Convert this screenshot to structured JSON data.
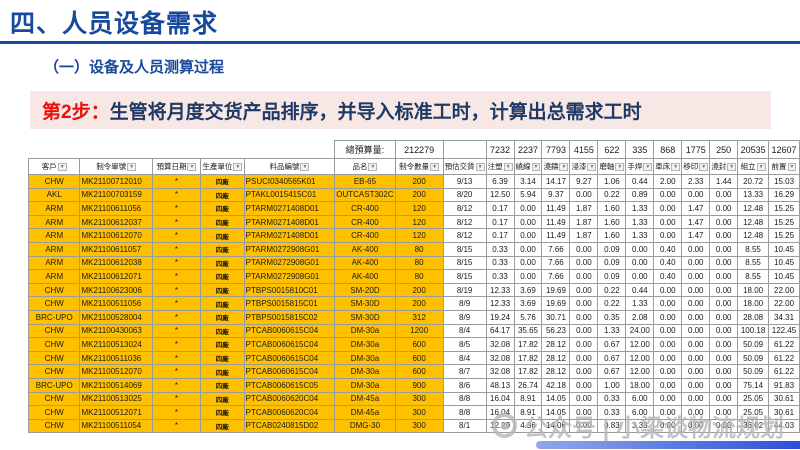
{
  "slide": {
    "title": "四、人员设备需求",
    "subtitle": "（一）设备及人员测算过程",
    "step_label": "第2步：",
    "step_text": "生管将月度交货产品排序，并导入标准工时，计算出总需求工时"
  },
  "table": {
    "summary_label": "總預算量:",
    "summary_total": "212279",
    "process_totals": [
      "7232",
      "2237",
      "7793",
      "4155",
      "622",
      "335",
      "868",
      "1775",
      "250",
      "20535",
      "12607"
    ],
    "columns": [
      "客戶",
      "制令單號",
      "預算日期",
      "生產單位",
      "料品編號",
      "品名",
      "制令數量",
      "預估交貨",
      "注塑",
      "繞線",
      "澆鑄",
      "浸漆",
      "磨軸",
      "手焊",
      "車床",
      "移印",
      "澆封",
      "組立",
      "前置"
    ],
    "rows": [
      [
        "CHW",
        "MK21100712010",
        "*",
        "四廠",
        "PSUCI0340565K01",
        "EB-65",
        "200",
        "9/13",
        "6.39",
        "3.14",
        "14.17",
        "9.27",
        "1.06",
        "0.44",
        "2.00",
        "2.33",
        "1.44",
        "20.72",
        "15.03"
      ],
      [
        "AKL",
        "MK21100703159",
        "*",
        "四廠",
        "PTAKL0015415C01",
        "OUTCAST302C",
        "200",
        "8/20",
        "12.50",
        "5.94",
        "9.37",
        "0.00",
        "0.22",
        "0.89",
        "0.00",
        "0.00",
        "0.00",
        "13.33",
        "16.29"
      ],
      [
        "ARM",
        "MK21100611056",
        "*",
        "四廠",
        "PTARM0271408D01",
        "CR-400",
        "120",
        "8/12",
        "0.17",
        "0.00",
        "11.49",
        "1.87",
        "1.60",
        "1.33",
        "0.00",
        "1.47",
        "0.00",
        "12.48",
        "15.25"
      ],
      [
        "ARM",
        "MK21100612037",
        "*",
        "四廠",
        "PTARM0271408D01",
        "CR-400",
        "120",
        "8/12",
        "0.17",
        "0.00",
        "11.49",
        "1.87",
        "1.60",
        "1.33",
        "0.00",
        "1.47",
        "0.00",
        "12.48",
        "15.25"
      ],
      [
        "ARM",
        "MK21100612070",
        "*",
        "四廠",
        "PTARM0271408D01",
        "CR-400",
        "120",
        "8/12",
        "0.17",
        "0.00",
        "11.49",
        "1.87",
        "1.60",
        "1.33",
        "0.00",
        "1.47",
        "0.00",
        "12.48",
        "15.25"
      ],
      [
        "ARM",
        "MK21100611057",
        "*",
        "四廠",
        "PTARM0272908G01",
        "AK-400",
        "80",
        "8/15",
        "0.33",
        "0.00",
        "7.66",
        "0.00",
        "0.09",
        "0.00",
        "0.40",
        "0.00",
        "0.00",
        "8.55",
        "10.45"
      ],
      [
        "ARM",
        "MK21100612038",
        "*",
        "四廠",
        "PTARM0272908G01",
        "AK-400",
        "80",
        "8/15",
        "0.33",
        "0.00",
        "7.66",
        "0.00",
        "0.09",
        "0.00",
        "0.40",
        "0.00",
        "0.00",
        "8.55",
        "10.45"
      ],
      [
        "ARM",
        "MK21100612071",
        "*",
        "四廠",
        "PTARM0272908G01",
        "AK-400",
        "80",
        "8/15",
        "0.33",
        "0.00",
        "7.66",
        "0.00",
        "0.09",
        "0.00",
        "0.40",
        "0.00",
        "0.00",
        "8.55",
        "10.45"
      ],
      [
        "CHW",
        "MK21100623006",
        "*",
        "四廠",
        "PTBPS0015810C01",
        "SM-20D",
        "200",
        "8/19",
        "12.33",
        "3.69",
        "19.69",
        "0.00",
        "0.22",
        "0.44",
        "0.00",
        "0.00",
        "0.00",
        "18.00",
        "22.00"
      ],
      [
        "CHW",
        "MK21100511056",
        "*",
        "四廠",
        "PTBPS0015815C01",
        "SM-30D",
        "200",
        "8/9",
        "12.33",
        "3.69",
        "19.69",
        "0.00",
        "0.22",
        "1.33",
        "0.00",
        "0.00",
        "0.00",
        "18.00",
        "22.00"
      ],
      [
        "BRC-UPO",
        "MK21100528004",
        "*",
        "四廠",
        "PTBPS0015815C02",
        "SM-30D",
        "312",
        "8/9",
        "19.24",
        "5.76",
        "30.71",
        "0.00",
        "0.35",
        "2.08",
        "0.00",
        "0.00",
        "0.00",
        "28.08",
        "34.31"
      ],
      [
        "CHW",
        "MK21100430063",
        "*",
        "四廠",
        "PTCAB0060615C04",
        "DM-30a",
        "1200",
        "8/4",
        "64.17",
        "35.65",
        "56.23",
        "0.00",
        "1.33",
        "24.00",
        "0.00",
        "0.00",
        "0.00",
        "100.18",
        "122.45"
      ],
      [
        "CHW",
        "MK21100513024",
        "*",
        "四廠",
        "PTCAB0060615C04",
        "DM-30a",
        "600",
        "8/5",
        "32.08",
        "17.82",
        "28.12",
        "0.00",
        "0.67",
        "12.00",
        "0.00",
        "0.00",
        "0.00",
        "50.09",
        "61.22"
      ],
      [
        "CHW",
        "MK21100511036",
        "*",
        "四廠",
        "PTCAB0060615C04",
        "DM-30a",
        "600",
        "8/4",
        "32.08",
        "17.82",
        "28.12",
        "0.00",
        "0.67",
        "12.00",
        "0.00",
        "0.00",
        "0.00",
        "50.09",
        "61.22"
      ],
      [
        "CHW",
        "MK21100512070",
        "*",
        "四廠",
        "PTCAB0060615C04",
        "DM-30a",
        "600",
        "8/7",
        "32.08",
        "17.82",
        "28.12",
        "0.00",
        "0.67",
        "12.00",
        "0.00",
        "0.00",
        "0.00",
        "50.09",
        "61.22"
      ],
      [
        "BRC-UPO",
        "MK21100514069",
        "*",
        "四廠",
        "PTCAB0060615C05",
        "DM-30a",
        "900",
        "8/6",
        "48.13",
        "26.74",
        "42.18",
        "0.00",
        "1.00",
        "18.00",
        "0.00",
        "0.00",
        "0.00",
        "75.14",
        "91.83"
      ],
      [
        "CHW",
        "MK21100513025",
        "*",
        "四廠",
        "PTCAB0060620C04",
        "DM-45a",
        "300",
        "8/8",
        "16.04",
        "8.91",
        "14.05",
        "0.00",
        "0.33",
        "6.00",
        "0.00",
        "0.00",
        "0.00",
        "25.05",
        "30.61"
      ],
      [
        "CHW",
        "MK21100512071",
        "*",
        "四廠",
        "PTCAB0060620C04",
        "DM-45a",
        "300",
        "8/8",
        "16.04",
        "8.91",
        "14.05",
        "0.00",
        "0.33",
        "6.00",
        "0.00",
        "0.00",
        "0.00",
        "25.05",
        "30.61"
      ],
      [
        "CHW",
        "MK21100511054",
        "*",
        "四廠",
        "PTCAB0240815D02",
        "DMG-30",
        "300",
        "8/1",
        "12.29",
        "4.36",
        "14.06",
        "0.00",
        "0.83",
        "3.33",
        "0.00",
        "0.00",
        "0.00",
        "36.02",
        "44.03"
      ]
    ]
  },
  "watermark": {
    "icon": "aperture-icon",
    "text": "公众号 | 小梁谈物流规划"
  },
  "colors": {
    "accent_blue": "#17499c",
    "banner_bg": "#f7e8e6",
    "step_red": "#e8110d",
    "banner_navy": "#1f3864",
    "cell_yellow": "#ffc000",
    "bottom_bar_start": "#8fa9ee",
    "bottom_bar_end": "#2c50d8",
    "watermark_gray": "#b4b7ba"
  }
}
